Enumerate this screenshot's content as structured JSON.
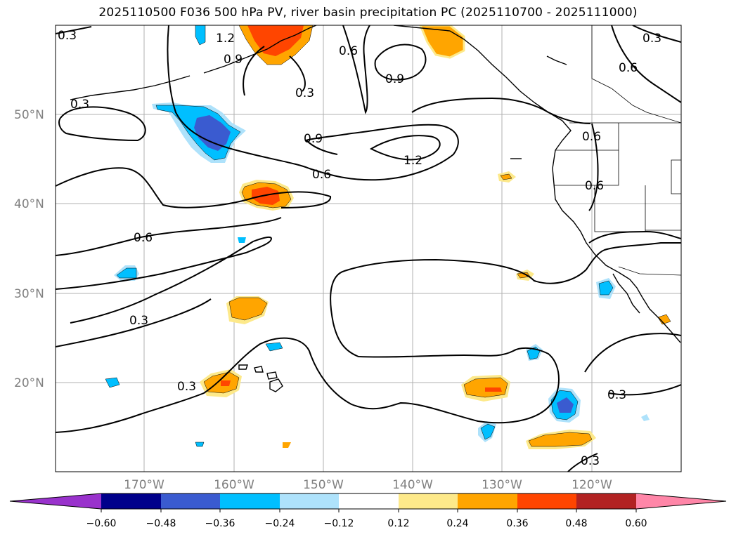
{
  "title": "2025110500 F036 500 hPa PV, river basin precipitation PC (2025110700 - 2025111000)",
  "map": {
    "lat_labels": [
      "50°N",
      "40°N",
      "30°N",
      "20°N"
    ],
    "lon_labels": [
      "170°W",
      "160°W",
      "150°W",
      "140°W",
      "130°W",
      "120°W"
    ],
    "contour_labels": [
      "0.3",
      "1.2",
      "0.9",
      "0.6",
      "0.3",
      "0.9",
      "0.3",
      "0.6",
      "0.3",
      "0.9",
      "1.2",
      "0.6",
      "0.6",
      "0.6",
      "0.6",
      "0.3",
      "0.3",
      "0.3",
      "0.3"
    ]
  },
  "colorbar": {
    "ticks": [
      "−0.60",
      "−0.48",
      "−0.36",
      "−0.24",
      "−0.12",
      "0.12",
      "0.24",
      "0.36",
      "0.48",
      "0.60"
    ],
    "colors": [
      "#9932cc",
      "#00008b",
      "#3a5bd0",
      "#00bfff",
      "#aee2fb",
      "#ffffff",
      "#fde98a",
      "#ffa500",
      "#ff4500",
      "#b22222",
      "#ff86a8"
    ]
  }
}
